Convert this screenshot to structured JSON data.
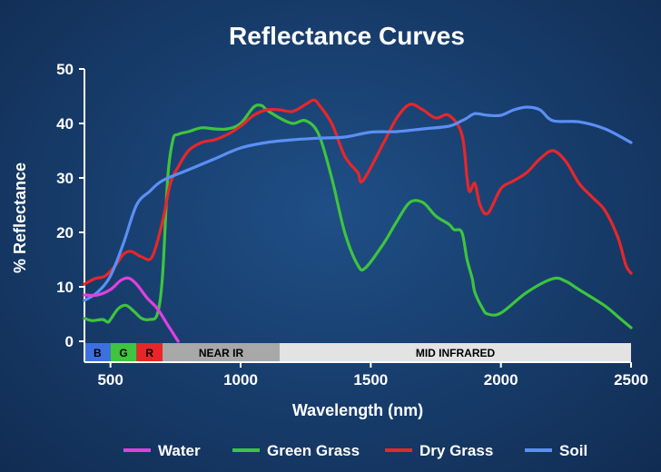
{
  "chart_data": {
    "type": "line",
    "title": "Reflectance Curves",
    "xlabel": "Wavelength (nm)",
    "ylabel": "% Reflectance",
    "xlim": [
      400,
      2500
    ],
    "ylim": [
      0,
      50
    ],
    "x_ticks": [
      "500",
      "1000",
      "1500",
      "2000",
      "2500"
    ],
    "x_tick_values": [
      500,
      1000,
      1500,
      2000,
      2500
    ],
    "y_ticks": [
      "0",
      "10",
      "20",
      "30",
      "40",
      "50"
    ],
    "y_tick_values": [
      0,
      10,
      20,
      30,
      40,
      50
    ],
    "grid": false,
    "legend_position": "bottom",
    "bands": [
      {
        "label": "B",
        "start": 400,
        "end": 500,
        "color": "#3d6fe0",
        "text_color": "#000000"
      },
      {
        "label": "G",
        "start": 500,
        "end": 600,
        "color": "#3ec43e",
        "text_color": "#000000"
      },
      {
        "label": "R",
        "start": 600,
        "end": 700,
        "color": "#e8262a",
        "text_color": "#000000"
      },
      {
        "label": "NEAR IR",
        "start": 700,
        "end": 1150,
        "color": "#a8a8a8",
        "text_color": "#000000"
      },
      {
        "label": "MID INFRARED",
        "start": 1150,
        "end": 2500,
        "color": "#e3e3e3",
        "text_color": "#000000"
      }
    ],
    "series": [
      {
        "name": "Water",
        "color": "#e040e0",
        "x": [
          400,
          450,
          500,
          540,
          570,
          600,
          640,
          680,
          720,
          760
        ],
        "y": [
          8.5,
          8.5,
          9.5,
          11.2,
          11.6,
          10.5,
          8,
          6,
          3,
          0
        ]
      },
      {
        "name": "Green Grass",
        "color": "#3ec43e",
        "x": [
          400,
          430,
          470,
          490,
          500,
          530,
          560,
          590,
          620,
          650,
          680,
          700,
          720,
          740,
          760,
          800,
          850,
          900,
          950,
          1000,
          1050,
          1080,
          1100,
          1150,
          1200,
          1250,
          1300,
          1350,
          1400,
          1450,
          1480,
          1550,
          1600,
          1650,
          1700,
          1750,
          1800,
          1820,
          1850,
          1870,
          1890,
          1900,
          1930,
          1950,
          2000,
          2100,
          2200,
          2250,
          2300,
          2400,
          2450,
          2500
        ],
        "y": [
          4.2,
          3.8,
          4,
          3.5,
          4,
          6,
          6.6,
          5.5,
          4.2,
          4,
          5,
          12,
          30,
          37,
          38,
          38.5,
          39.2,
          39,
          39,
          40,
          43,
          43.3,
          42.5,
          41,
          40,
          40.5,
          38,
          30,
          20,
          14,
          13.5,
          18,
          22,
          25.5,
          25.5,
          23,
          21.5,
          20.5,
          20,
          15,
          11.5,
          9,
          6,
          5,
          5.2,
          9,
          11.5,
          11,
          9.5,
          6.5,
          4.5,
          2.5
        ]
      },
      {
        "name": "Dry Grass",
        "color": "#e8262a",
        "x": [
          400,
          440,
          480,
          520,
          550,
          580,
          620,
          660,
          700,
          730,
          760,
          800,
          850,
          900,
          950,
          1000,
          1050,
          1100,
          1150,
          1200,
          1250,
          1280,
          1300,
          1350,
          1400,
          1450,
          1470,
          1550,
          1600,
          1650,
          1700,
          1750,
          1800,
          1850,
          1870,
          1880,
          1900,
          1920,
          1950,
          2000,
          2050,
          2100,
          2150,
          2200,
          2250,
          2300,
          2350,
          2400,
          2450,
          2480,
          2500
        ],
        "y": [
          10.5,
          11.5,
          12,
          14,
          16,
          16.5,
          15.5,
          15.5,
          22,
          29,
          32,
          35,
          36.5,
          37,
          38,
          39.5,
          41.5,
          42.5,
          42.5,
          42.2,
          43.5,
          44.3,
          43.5,
          40,
          34,
          31,
          29.5,
          36.5,
          41,
          43.5,
          42.5,
          41,
          41.5,
          38,
          30,
          27.5,
          29,
          25,
          23.5,
          28,
          29.5,
          31,
          33.5,
          35,
          33,
          29,
          26.5,
          24,
          19,
          14,
          12.5
        ]
      },
      {
        "name": "Soil",
        "color": "#5b8ff5",
        "x": [
          400,
          450,
          500,
          550,
          600,
          650,
          700,
          800,
          900,
          1000,
          1100,
          1200,
          1300,
          1400,
          1500,
          1600,
          1700,
          1800,
          1850,
          1870,
          1900,
          1950,
          2000,
          2050,
          2100,
          2150,
          2200,
          2300,
          2400,
          2500
        ],
        "y": [
          7.5,
          9,
          12,
          18,
          25,
          27.5,
          29.5,
          31.5,
          33.5,
          35.5,
          36.5,
          37,
          37.3,
          37.5,
          38.4,
          38.5,
          39,
          39.5,
          40.5,
          41,
          41.8,
          41.5,
          41.5,
          42.5,
          43,
          42.5,
          40.5,
          40.3,
          39,
          36.5
        ]
      }
    ]
  }
}
